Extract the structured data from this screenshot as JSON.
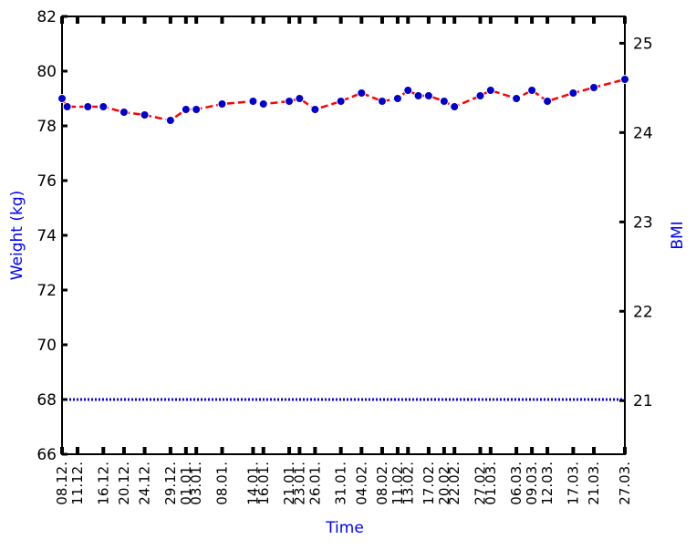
{
  "chart_data": {
    "type": "line",
    "xlabel": "Time",
    "ylabel": "Weight (kg)",
    "y2label": "BMI",
    "ylim": [
      66,
      82
    ],
    "y2lim": [
      20.4,
      25.3
    ],
    "yticks": [
      66,
      68,
      70,
      72,
      74,
      76,
      78,
      80,
      82
    ],
    "y2ticks": [
      21,
      22,
      23,
      24,
      25
    ],
    "grid": false,
    "legend": "none",
    "colors": {
      "weight_line": "#ff0000",
      "weight_marker": "#0000cc",
      "bmi_line": "#0000ff",
      "axis_title": "#0000ff"
    },
    "x_tick_labels": [
      "08.12.",
      "11.12.",
      "16.12.",
      "20.12.",
      "24.12.",
      "29.12.",
      "01.01.",
      "03.01.",
      "08.01.",
      "14.01.",
      "16.01.",
      "21.01.",
      "23.01.",
      "26.01.",
      "31.01.",
      "04.02.",
      "08.02.",
      "11.02.",
      "13.02.",
      "17.02.",
      "20.02.",
      "22.02.",
      "27.02.",
      "01.03.",
      "06.03.",
      "09.03.",
      "12.03.",
      "17.03.",
      "21.03.",
      "27.03."
    ],
    "series": [
      {
        "axis": "left",
        "style": "dashed-markers",
        "x": [
          "08.12.",
          "09.12.",
          "13.12.",
          "16.12.",
          "20.12.",
          "24.12.",
          "29.12.",
          "01.01.",
          "03.01.",
          "08.01.",
          "14.01.",
          "16.01.",
          "21.01.",
          "23.01.",
          "26.01.",
          "31.01.",
          "04.02.",
          "08.02.",
          "11.02.",
          "13.02.",
          "15.02.",
          "17.02.",
          "20.02.",
          "22.02.",
          "27.02.",
          "01.03.",
          "06.03.",
          "09.03.",
          "12.03.",
          "17.03.",
          "21.03.",
          "27.03."
        ],
        "values": [
          79.0,
          78.7,
          78.7,
          78.7,
          78.5,
          78.4,
          78.2,
          78.6,
          78.6,
          78.8,
          78.9,
          78.8,
          78.9,
          79.0,
          78.6,
          78.9,
          79.2,
          78.9,
          79.0,
          79.3,
          79.1,
          79.1,
          78.9,
          78.7,
          79.1,
          79.3,
          79.0,
          79.3,
          78.9,
          79.2,
          79.4,
          79.7
        ]
      },
      {
        "axis": "left",
        "style": "dotted",
        "x": [
          "08.12.",
          "27.03."
        ],
        "values": [
          68.0,
          68.0
        ]
      }
    ]
  }
}
